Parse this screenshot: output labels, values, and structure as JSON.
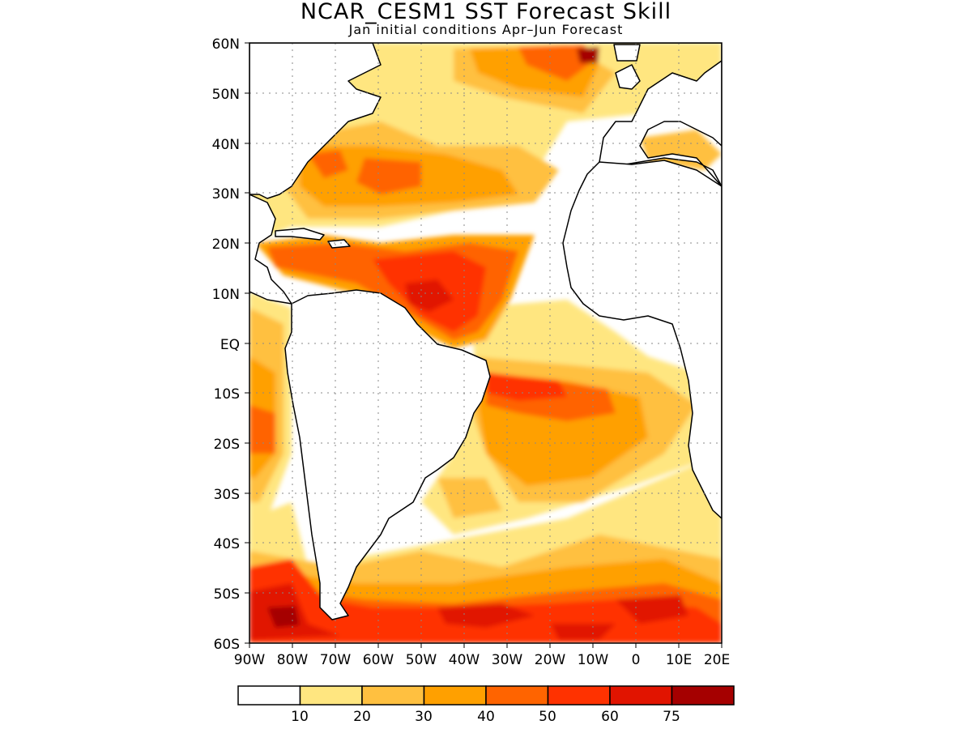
{
  "title": "NCAR_CESM1  SST Forecast Skill",
  "subtitle": "Jan initial conditions  Apr–Jun Forecast",
  "map": {
    "lon_range": [
      -90,
      20
    ],
    "lat_range": [
      -60,
      60
    ],
    "y_tick_labels": [
      "60N",
      "50N",
      "40N",
      "30N",
      "20N",
      "10N",
      "EQ",
      "10S",
      "20S",
      "30S",
      "40S",
      "50S",
      "60S"
    ],
    "x_tick_labels": [
      "90W",
      "80W",
      "70W",
      "60W",
      "50W",
      "40W",
      "30W",
      "20W",
      "10W",
      "0",
      "10E",
      "20E"
    ],
    "grid": "dotted",
    "land_color": "#ffffff",
    "coastline_color": "#000000"
  },
  "colorbar": {
    "colors": [
      "#ffffff",
      "#ffe680",
      "#ffc040",
      "#ffa000",
      "#ff6400",
      "#ff3200",
      "#e11400",
      "#a50000"
    ],
    "labels": [
      "10",
      "20",
      "30",
      "40",
      "50",
      "60",
      "75"
    ]
  }
}
